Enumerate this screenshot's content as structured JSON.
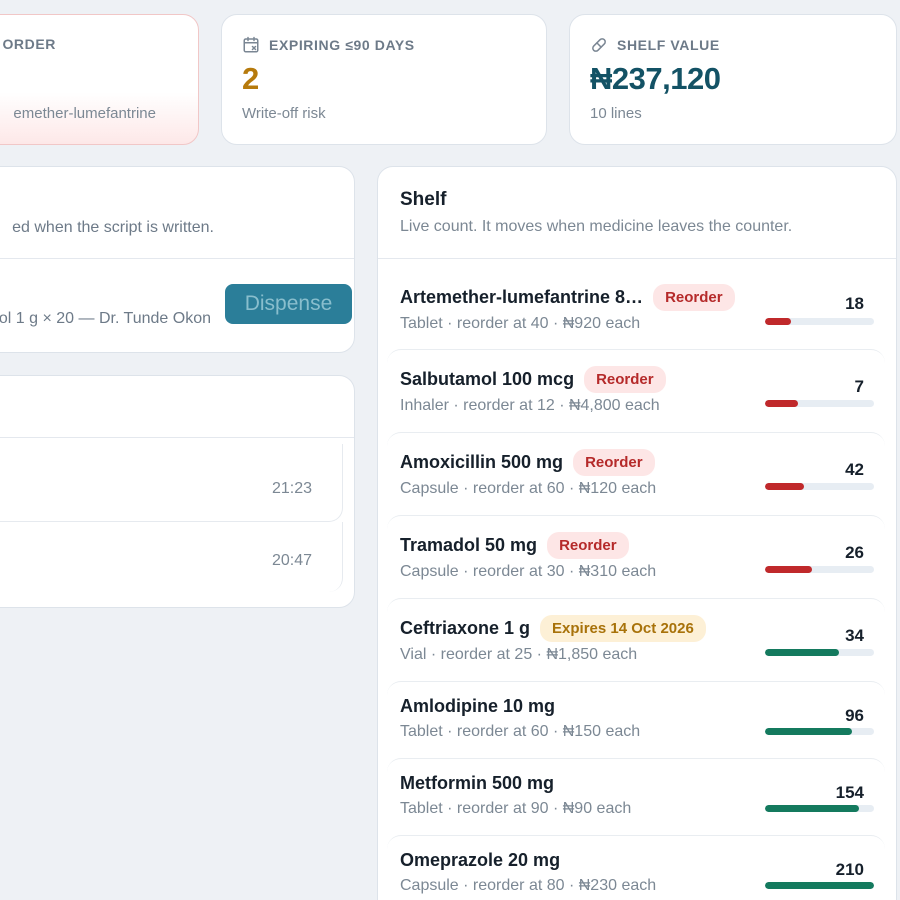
{
  "stats": {
    "reorder": {
      "label": "ORDER",
      "sub": "emether-lumefantrine"
    },
    "expiring": {
      "label": "EXPIRING ≤90 DAYS",
      "value": "2",
      "sub": "Write-off risk",
      "icon": "calendar-x-icon"
    },
    "shelf_value": {
      "label": "SHELF VALUE",
      "value": "₦237,120",
      "sub": "10 lines",
      "icon": "pill-icon"
    }
  },
  "prescribe": {
    "description": "ed when the script is written.",
    "script_line": "ol 1 g × 20 — Dr. Tunde Okon",
    "dispense_label": "Dispense"
  },
  "log": {
    "entries": [
      {
        "time": "21:23"
      },
      {
        "time": "20:47"
      }
    ]
  },
  "shelf": {
    "title": "Shelf",
    "description": "Live count. It moves when medicine leaves the counter.",
    "items": [
      {
        "name": "Artemether-lumefantrine 8…",
        "badge": "Reorder",
        "badge_type": "reorder",
        "meta": "Tablet · reorder at 40 · ₦920 each",
        "count": "18",
        "level": 0.24,
        "status": "low"
      },
      {
        "name": "Salbutamol 100 mcg",
        "badge": "Reorder",
        "badge_type": "reorder",
        "meta": "Inhaler · reorder at 12 · ₦4,800 each",
        "count": "7",
        "level": 0.3,
        "status": "low"
      },
      {
        "name": "Amoxicillin 500 mg",
        "badge": "Reorder",
        "badge_type": "reorder",
        "meta": "Capsule · reorder at 60 · ₦120 each",
        "count": "42",
        "level": 0.36,
        "status": "low"
      },
      {
        "name": "Tramadol 50 mg",
        "badge": "Reorder",
        "badge_type": "reorder",
        "meta": "Capsule · reorder at 30 · ₦310 each",
        "count": "26",
        "level": 0.43,
        "status": "low"
      },
      {
        "name": "Ceftriaxone 1 g",
        "badge": "Expires 14 Oct 2026",
        "badge_type": "expires",
        "meta": "Vial · reorder at 25 · ₦1,850 each",
        "count": "34",
        "level": 0.68,
        "status": "ok"
      },
      {
        "name": "Amlodipine 10 mg",
        "badge": "",
        "badge_type": "",
        "meta": "Tablet · reorder at 60 · ₦150 each",
        "count": "96",
        "level": 0.8,
        "status": "ok"
      },
      {
        "name": "Metformin 500 mg",
        "badge": "",
        "badge_type": "",
        "meta": "Tablet · reorder at 90 · ₦90 each",
        "count": "154",
        "level": 0.86,
        "status": "ok"
      },
      {
        "name": "Omeprazole 20 mg",
        "badge": "",
        "badge_type": "",
        "meta": "Capsule · reorder at 80 · ₦230 each",
        "count": "210",
        "level": 1.0,
        "status": "ok"
      }
    ]
  },
  "colors": {
    "low": "#c0292b",
    "ok": "#147a5e",
    "accent": "#1a7491"
  }
}
